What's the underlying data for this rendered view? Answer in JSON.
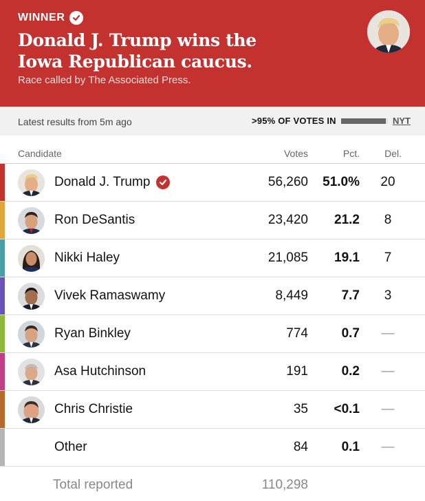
{
  "banner": {
    "winner_label": "WINNER",
    "headline": "Donald J. Trump wins the Iowa Republican caucus.",
    "byline": "Race called by The Associated Press.",
    "background_color": "#c4322f",
    "check_icon": "check-icon"
  },
  "status": {
    "latest": "Latest results from 5m ago",
    "votes_in": ">95% OF VOTES IN",
    "votes_in_fraction": 0.96,
    "source": "NYT"
  },
  "table": {
    "headers": {
      "candidate": "Candidate",
      "votes": "Votes",
      "pct": "Pct.",
      "del": "Del."
    },
    "rows": [
      {
        "name": "Donald J. Trump",
        "votes": "56,260",
        "pct": "51.0%",
        "del": "20",
        "color": "#c4322f",
        "winner": true,
        "avatar": "trump"
      },
      {
        "name": "Ron DeSantis",
        "votes": "23,420",
        "pct": "21.2",
        "del": "8",
        "color": "#e0a83a",
        "winner": false,
        "avatar": "desantis"
      },
      {
        "name": "Nikki Haley",
        "votes": "21,085",
        "pct": "19.1",
        "del": "7",
        "color": "#4a9ea6",
        "winner": false,
        "avatar": "haley"
      },
      {
        "name": "Vivek Ramaswamy",
        "votes": "8,449",
        "pct": "7.7",
        "del": "3",
        "color": "#6654b8",
        "winner": false,
        "avatar": "ramaswamy"
      },
      {
        "name": "Ryan Binkley",
        "votes": "774",
        "pct": "0.7",
        "del": "—",
        "color": "#8cb83c",
        "winner": false,
        "avatar": "binkley"
      },
      {
        "name": "Asa Hutchinson",
        "votes": "191",
        "pct": "0.2",
        "del": "—",
        "color": "#c23f86",
        "winner": false,
        "avatar": "hutchinson"
      },
      {
        "name": "Chris Christie",
        "votes": "35",
        "pct": "<0.1",
        "del": "—",
        "color": "#b76a2a",
        "winner": false,
        "avatar": "christie"
      },
      {
        "name": "Other",
        "votes": "84",
        "pct": "0.1",
        "del": "—",
        "color": "#b5b5b5",
        "winner": false,
        "avatar": null
      }
    ],
    "total": {
      "label": "Total reported",
      "votes": "110,298"
    }
  }
}
